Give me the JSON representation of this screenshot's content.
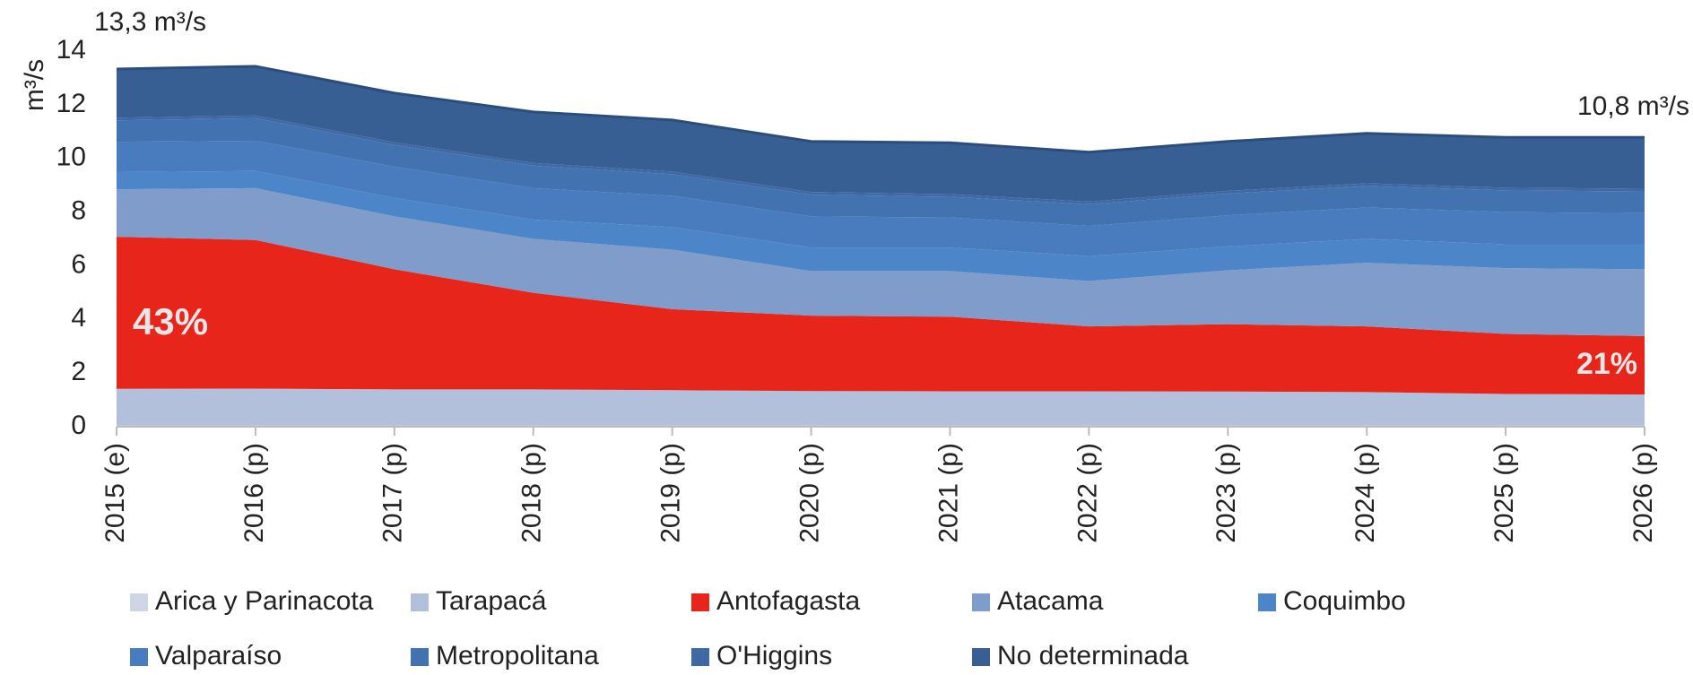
{
  "chart_data": {
    "type": "stacked_area",
    "y_label": "m³/s",
    "annotations": [
      "13,3 m³/s",
      "10,8 m³/s",
      "43%",
      "21%"
    ],
    "categories": [
      "2015 (e)",
      "2016 (p)",
      "2017 (p)",
      "2018 (p)",
      "2019 (p)",
      "2020 (p)",
      "2021 (p)",
      "2022 (p)",
      "2023 (p)",
      "2024 (p)",
      "2025 (p)",
      "2026 (p)"
    ],
    "series": [
      {
        "name": "Arica y Parinacota",
        "color": "#cdd5e6",
        "values": [
          0.05,
          0.05,
          0.05,
          0.05,
          0.05,
          0.05,
          0.05,
          0.05,
          0.05,
          0.05,
          0.05,
          0.05
        ]
      },
      {
        "name": "Tarapacá",
        "color": "#b3c0dc",
        "values": [
          1.36,
          1.37,
          1.34,
          1.34,
          1.31,
          1.28,
          1.27,
          1.27,
          1.26,
          1.24,
          1.17,
          1.15
        ]
      },
      {
        "name": "Antofagasta",
        "color": "#e8251a",
        "values": [
          5.67,
          5.54,
          4.48,
          3.6,
          3.02,
          2.81,
          2.78,
          2.42,
          2.51,
          2.45,
          2.24,
          2.18
        ]
      },
      {
        "name": "Atacama",
        "color": "#7f9ccb",
        "values": [
          1.77,
          1.93,
          1.97,
          2.01,
          2.22,
          1.66,
          1.7,
          1.69,
          2.01,
          2.37,
          2.45,
          2.49
        ]
      },
      {
        "name": "Coquimbo",
        "color": "#4d86c8",
        "values": [
          0.64,
          0.64,
          0.69,
          0.72,
          0.84,
          0.88,
          0.88,
          0.93,
          0.89,
          0.89,
          0.89,
          0.93
        ]
      },
      {
        "name": "Valparaíso",
        "color": "#487cbe",
        "values": [
          1.13,
          1.13,
          1.16,
          1.17,
          1.17,
          1.16,
          1.12,
          1.12,
          1.16,
          1.17,
          1.2,
          1.16
        ]
      },
      {
        "name": "Metropolitana",
        "color": "#4272b0",
        "values": [
          0.8,
          0.84,
          0.81,
          0.84,
          0.8,
          0.81,
          0.77,
          0.81,
          0.81,
          0.8,
          0.81,
          0.81
        ]
      },
      {
        "name": "O'Higgins",
        "color": "#3e69a4",
        "values": [
          0.1,
          0.1,
          0.1,
          0.1,
          0.1,
          0.1,
          0.1,
          0.1,
          0.1,
          0.1,
          0.1,
          0.1
        ]
      },
      {
        "name": "No determinada",
        "color": "#385f94",
        "values": [
          1.78,
          1.8,
          1.8,
          1.87,
          1.89,
          1.85,
          1.88,
          1.81,
          1.81,
          1.83,
          1.84,
          1.88
        ]
      }
    ],
    "ylim": [
      0,
      14
    ],
    "yticks": [
      0,
      2,
      4,
      6,
      8,
      10,
      12,
      14
    ],
    "grid": false
  }
}
